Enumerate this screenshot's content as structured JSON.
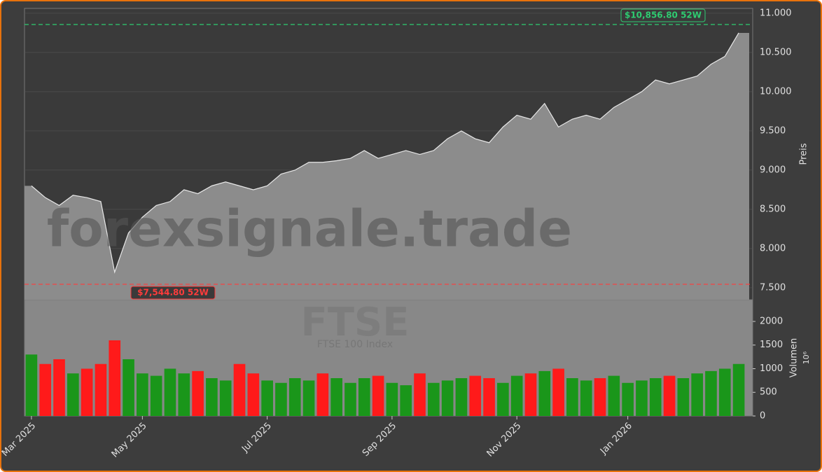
{
  "chart_data": [
    {
      "type": "area",
      "color": "#8c8c8c",
      "line_color": "#e8e8e8",
      "values": [
        8800,
        8650,
        8550,
        8680,
        8650,
        8600,
        7700,
        8200,
        8400,
        8550,
        8600,
        8750,
        8700,
        8800,
        8850,
        8800,
        8750,
        8800,
        8950,
        9000,
        9100,
        9100,
        9120,
        9150,
        9250,
        9150,
        9200,
        9250,
        9200,
        9250,
        9400,
        9500,
        9400,
        9350,
        9550,
        9700,
        9650,
        9850,
        9550,
        9650,
        9700,
        9650,
        9800,
        9900,
        10000,
        10150,
        10100,
        10150,
        10200,
        10350,
        10450,
        10750
      ],
      "ylim": [
        7348,
        11062
      ],
      "yticks": [
        {
          "value": 7500,
          "label": "7.500"
        },
        {
          "value": 8000,
          "label": "8.000"
        },
        {
          "value": 8500,
          "label": "8.500"
        },
        {
          "value": 9000,
          "label": "9.000"
        },
        {
          "value": 9500,
          "label": "9.500"
        },
        {
          "value": 10000,
          "label": "10.000"
        },
        {
          "value": 10500,
          "label": "10.500"
        },
        {
          "value": 11000,
          "label": "11.000"
        }
      ],
      "y_label": "Preis",
      "grid": true,
      "annotations": [
        {
          "value": 10856.8,
          "label": "$10,856.80 52W",
          "color": "#2ecc71"
        },
        {
          "value": 7544.8,
          "label": "$7,544.80 52W",
          "color": "#ff3b3b"
        }
      ],
      "watermark": "forexsignale.trade"
    },
    {
      "type": "bar",
      "categories": [
        "Mar 2025",
        null,
        null,
        null,
        null,
        null,
        null,
        null,
        "May 2025",
        null,
        null,
        null,
        null,
        null,
        null,
        null,
        null,
        "Jul 2025",
        null,
        null,
        null,
        null,
        null,
        null,
        null,
        null,
        "Sep 2025",
        null,
        null,
        null,
        null,
        null,
        null,
        null,
        null,
        "Nov 2025",
        null,
        null,
        null,
        null,
        null,
        null,
        null,
        "Jan 2026",
        null,
        null,
        null,
        null,
        null,
        null,
        null,
        null
      ],
      "values": [
        1300,
        1100,
        1200,
        900,
        1000,
        1100,
        1600,
        1200,
        900,
        850,
        1000,
        900,
        950,
        800,
        750,
        1100,
        900,
        750,
        700,
        800,
        750,
        900,
        800,
        700,
        800,
        850,
        700,
        650,
        900,
        700,
        750,
        800,
        850,
        800,
        700,
        850,
        900,
        950,
        1000,
        800,
        750,
        800,
        850,
        700,
        750,
        800,
        850,
        800,
        900,
        950,
        1000,
        1100
      ],
      "colors": [
        "#1a961a",
        "#ff1a1a",
        "#ff1a1a",
        "#1a961a",
        "#ff1a1a",
        "#ff1a1a",
        "#ff1a1a",
        "#1a961a",
        "#1a961a",
        "#1a961a",
        "#1a961a",
        "#1a961a",
        "#ff1a1a",
        "#1a961a",
        "#1a961a",
        "#ff1a1a",
        "#ff1a1a",
        "#1a961a",
        "#1a961a",
        "#1a961a",
        "#1a961a",
        "#ff1a1a",
        "#1a961a",
        "#1a961a",
        "#1a961a",
        "#ff1a1a",
        "#1a961a",
        "#1a961a",
        "#ff1a1a",
        "#1a961a",
        "#1a961a",
        "#1a961a",
        "#ff1a1a",
        "#ff1a1a",
        "#1a961a",
        "#1a961a",
        "#ff1a1a",
        "#1a961a",
        "#ff1a1a",
        "#1a961a",
        "#1a961a",
        "#ff1a1a",
        "#1a961a",
        "#1a961a",
        "#1a961a",
        "#1a961a",
        "#ff1a1a",
        "#1a961a",
        "#1a961a",
        "#1a961a",
        "#1a961a",
        "#1a961a"
      ],
      "ylim": [
        0,
        2459
      ],
      "yticks": [
        0,
        500,
        1000,
        1500,
        2000
      ],
      "y_label": "Volumen",
      "y_unit": "10⁶",
      "watermark": "FTSE",
      "watermark_sub": "FTSE 100 Index"
    }
  ]
}
